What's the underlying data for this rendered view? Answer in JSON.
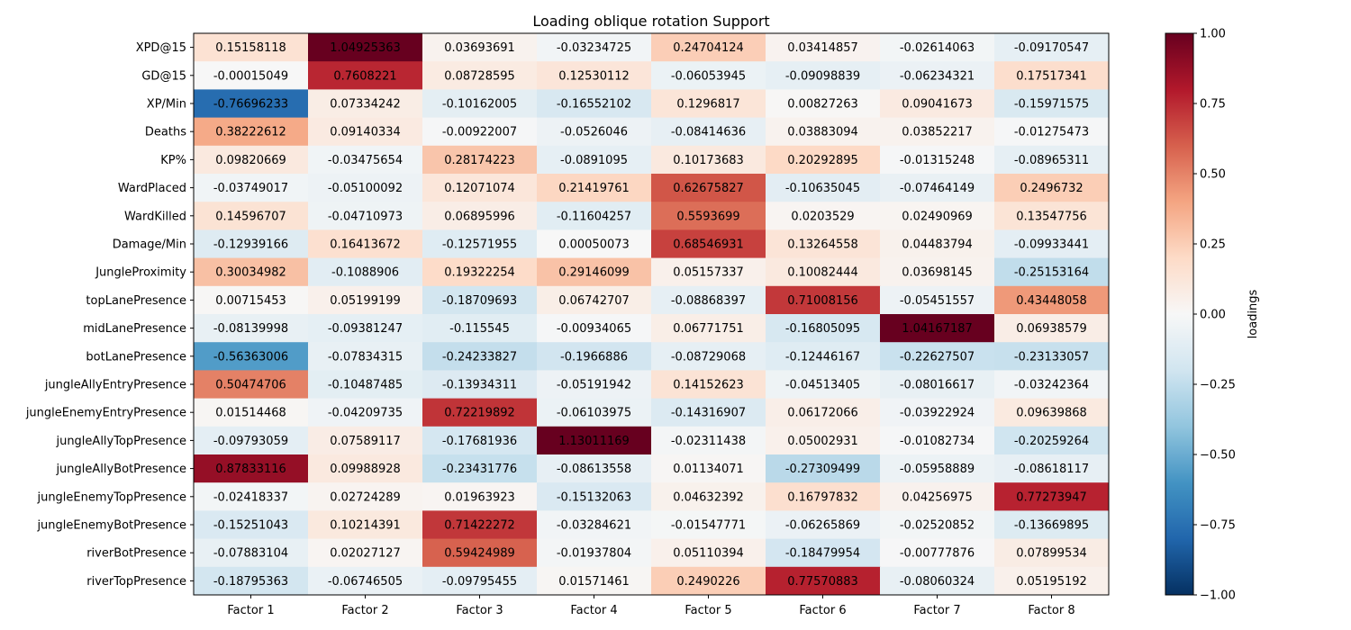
{
  "chart_data": {
    "type": "heatmap",
    "title": "Loading oblique rotation Support",
    "colorbar_label": "loadings",
    "vmin": -1.0,
    "vmax": 1.0,
    "colormap": "RdBu_r",
    "colorbar_ticks": [
      "1.00",
      "0.75",
      "0.50",
      "0.25",
      "0.00",
      "−0.25",
      "−0.50",
      "−0.75",
      "−1.00"
    ],
    "colorbar_tick_values": [
      1.0,
      0.75,
      0.5,
      0.25,
      0.0,
      -0.25,
      -0.5,
      -0.75,
      -1.0
    ],
    "columns": [
      "Factor 1",
      "Factor 2",
      "Factor 3",
      "Factor 4",
      "Factor 5",
      "Factor 6",
      "Factor 7",
      "Factor 8"
    ],
    "rows": [
      "XPD@15",
      "GD@15",
      "XP/Min",
      "Deaths",
      "KP%",
      "WardPlaced",
      "WardKilled",
      "Damage/Min",
      "JungleProximity",
      "topLanePresence",
      "midLanePresence",
      "botLanePresence",
      "jungleAllyEntryPresence",
      "jungleEnemyEntryPresence",
      "jungleAllyTopPresence",
      "jungleAllyBotPresence",
      "jungleEnemyTopPresence",
      "jungleEnemyBotPresence",
      "riverBotPresence",
      "riverTopPresence"
    ],
    "values": [
      [
        "0.15158118",
        "1.04925363",
        "0.03693691",
        "-0.03234725",
        "0.24704124",
        "0.03414857",
        "-0.02614063",
        "-0.09170547"
      ],
      [
        "-0.00015049",
        "0.7608221",
        "0.08728595",
        "0.12530112",
        "-0.06053945",
        "-0.09098839",
        "-0.06234321",
        "0.17517341"
      ],
      [
        "-0.76696233",
        "0.07334242",
        "-0.10162005",
        "-0.16552102",
        "0.1296817",
        "0.00827263",
        "0.09041673",
        "-0.15971575"
      ],
      [
        "0.38222612",
        "0.09140334",
        "-0.00922007",
        "-0.0526046",
        "-0.08414636",
        "0.03883094",
        "0.03852217",
        "-0.01275473"
      ],
      [
        "0.09820669",
        "-0.03475654",
        "0.28174223",
        "-0.0891095",
        "0.10173683",
        "0.20292895",
        "-0.01315248",
        "-0.08965311"
      ],
      [
        "-0.03749017",
        "-0.05100092",
        "0.12071074",
        "0.21419761",
        "0.62675827",
        "-0.10635045",
        "-0.07464149",
        "0.2496732"
      ],
      [
        "0.14596707",
        "-0.04710973",
        "0.06895996",
        "-0.11604257",
        "0.5593699",
        "0.0203529",
        "0.02490969",
        "0.13547756"
      ],
      [
        "-0.12939166",
        "0.16413672",
        "-0.12571955",
        "0.00050073",
        "0.68546931",
        "0.13264558",
        "0.04483794",
        "-0.09933441"
      ],
      [
        "0.30034982",
        "-0.1088906",
        "0.19322254",
        "0.29146099",
        "0.05157337",
        "0.10082444",
        "0.03698145",
        "-0.25153164"
      ],
      [
        "0.00715453",
        "0.05199199",
        "-0.18709693",
        "0.06742707",
        "-0.08868397",
        "0.71008156",
        "-0.05451557",
        "0.43448058"
      ],
      [
        "-0.08139998",
        "-0.09381247",
        "-0.115545",
        "-0.00934065",
        "0.06771751",
        "-0.16805095",
        "1.04167187",
        "0.06938579"
      ],
      [
        "-0.56363006",
        "-0.07834315",
        "-0.24233827",
        "-0.1966886",
        "-0.08729068",
        "-0.12446167",
        "-0.22627507",
        "-0.23133057"
      ],
      [
        "0.50474706",
        "-0.10487485",
        "-0.13934311",
        "-0.05191942",
        "0.14152623",
        "-0.04513405",
        "-0.08016617",
        "-0.03242364"
      ],
      [
        "0.01514468",
        "-0.04209735",
        "0.72219892",
        "-0.06103975",
        "-0.14316907",
        "0.06172066",
        "-0.03922924",
        "0.09639868"
      ],
      [
        "-0.09793059",
        "0.07589117",
        "-0.17681936",
        "1.13011169",
        "-0.02311438",
        "0.05002931",
        "-0.01082734",
        "-0.20259264"
      ],
      [
        "0.87833116",
        "0.09988928",
        "-0.23431776",
        "-0.08613558",
        "0.01134071",
        "-0.27309499",
        "-0.05958889",
        "-0.08618117"
      ],
      [
        "-0.02418337",
        "0.02724289",
        "0.01963923",
        "-0.15132063",
        "0.04632392",
        "0.16797832",
        "0.04256975",
        "0.77273947"
      ],
      [
        "-0.15251043",
        "0.10214391",
        "0.71422272",
        "-0.03284621",
        "-0.01547771",
        "-0.06265869",
        "-0.02520852",
        "-0.13669895"
      ],
      [
        "-0.07883104",
        "0.02027127",
        "0.59424989",
        "-0.01937804",
        "0.05110394",
        "-0.18479954",
        "-0.00777876",
        "0.07899534"
      ],
      [
        "-0.18795363",
        "-0.06746505",
        "-0.09795455",
        "0.01571461",
        "0.2490226",
        "0.77570883",
        "-0.08060324",
        "0.05195192"
      ]
    ]
  }
}
